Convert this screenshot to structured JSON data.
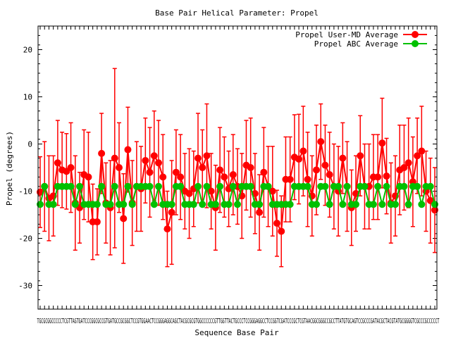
{
  "chart_data": {
    "type": "line",
    "title": "Base Pair Helical Parameter: Propel",
    "xlabel": "Sequence Base Pair",
    "ylabel": "Propel (degrees)",
    "ylim": [
      -35,
      25
    ],
    "yticks": [
      -30,
      -20,
      -10,
      0,
      10,
      20
    ],
    "grid": false,
    "legend_position": "top-right",
    "x_tick_labels": "TGCGCGGCCCCCTCGTTAGTGATCCCGGCGCCGTGATGCCGCGGCTCCGTGGAACTCCGGGAGGCAGCTACGCGCGTGGCCCCCCGTTGGTTACTGCCCTCCGGGAGGCCTCCGGTCGATCCCGCTCGTAACGGCGGGCCGCCTTATGTGCAGTCCGCCCGATACGCTACGTATGCGGGGTCGCCCGCCCCCT",
    "series": [
      {
        "name": "Propel User-MD Average",
        "color": "#ff0000",
        "values": [
          -10.2,
          -9.0,
          -11.5,
          -11.0,
          -4.0,
          -5.5,
          -5.8,
          -5.0,
          -12.5,
          -13.5,
          -6.5,
          -7.0,
          -16.5,
          -16.5,
          -2.0,
          -12.5,
          -13.5,
          -3.0,
          -5.0,
          -15.8,
          -1.2,
          -12.5,
          -9.0,
          -9.5,
          -3.5,
          -6.0,
          -2.5,
          -4.0,
          -7.0,
          -18.0,
          -14.5,
          -6.0,
          -7.0,
          -10.0,
          -10.5,
          -9.5,
          -3.0,
          -5.0,
          -2.5,
          -10.0,
          -13.5,
          -5.5,
          -7.0,
          -9.5,
          -6.5,
          -9.0,
          -11.0,
          -4.5,
          -5.0,
          -10.5,
          -14.5,
          -6.0,
          -9.0,
          -10.0,
          -16.8,
          -18.5,
          -7.5,
          -7.5,
          -2.8,
          -3.2,
          -1.5,
          -7.5,
          -11.0,
          -5.5,
          0.5,
          -4.5,
          -6.5,
          -9.0,
          -10.0,
          -3.0,
          -9.0,
          -13.5,
          -10.5,
          -2.5,
          -9.0,
          -9.0,
          -7.0,
          -7.0,
          0.2,
          -6.8,
          -12.5,
          -11.0,
          -5.5,
          -5.0,
          -4.0,
          -8.0,
          -2.5,
          -1.5,
          -10.0,
          -12.0,
          -14.0
        ],
        "error": [
          7.5,
          9.5,
          9.0,
          8.5,
          9.0,
          8.0,
          8.0,
          9.5,
          10.0,
          7.5,
          9.5,
          9.5,
          8.0,
          7.0,
          8.5,
          8.5,
          10.0,
          19.0,
          9.5,
          9.5,
          9.0,
          9.0,
          9.5,
          9.0,
          9.0,
          9.5,
          9.5,
          9.0,
          9.0,
          8.0,
          11.0,
          9.0,
          9.0,
          8.0,
          9.5,
          8.0,
          9.5,
          8.0,
          11.0,
          8.0,
          9.0,
          9.0,
          8.5,
          8.0,
          8.5,
          8.0,
          9.0,
          9.5,
          10.5,
          8.5,
          8.0,
          9.5,
          8.5,
          9.5,
          7.0,
          7.5,
          9.0,
          9.0,
          9.0,
          9.5,
          9.5,
          10.0,
          8.5,
          9.5,
          8.0,
          8.5,
          9.0,
          9.0,
          9.5,
          7.5,
          9.5,
          8.0,
          8.0,
          8.5,
          9.0,
          9.0,
          9.0,
          9.0,
          9.5,
          8.0,
          8.5,
          8.5,
          9.5,
          9.0,
          9.5,
          9.5,
          8.0,
          9.5,
          8.5,
          9.0,
          9.0
        ]
      },
      {
        "name": "Propel ABC Average",
        "color": "#00c000",
        "values": [
          -12.8,
          -9.0,
          -12.8,
          -12.8,
          -9.0,
          -9.0,
          -9.0,
          -9.0,
          -12.8,
          -9.0,
          -12.8,
          -12.8,
          -12.8,
          -12.8,
          -9.0,
          -12.8,
          -12.8,
          -9.0,
          -12.8,
          -12.8,
          -9.0,
          -12.8,
          -9.0,
          -9.0,
          -9.0,
          -9.0,
          -12.8,
          -9.0,
          -12.8,
          -12.8,
          -12.8,
          -9.0,
          -9.0,
          -12.8,
          -12.8,
          -12.8,
          -9.0,
          -12.8,
          -9.0,
          -12.8,
          -12.8,
          -9.0,
          -12.8,
          -12.8,
          -9.0,
          -12.8,
          -9.0,
          -9.0,
          -9.0,
          -12.8,
          -12.8,
          -9.0,
          -9.0,
          -12.8,
          -12.8,
          -12.8,
          -12.8,
          -12.8,
          -9.0,
          -9.0,
          -9.0,
          -9.0,
          -12.8,
          -12.8,
          -9.0,
          -9.0,
          -12.8,
          -9.0,
          -9.0,
          -12.8,
          -9.0,
          -12.8,
          -12.8,
          -9.0,
          -9.0,
          -12.8,
          -12.8,
          -9.0,
          -12.8,
          -9.0,
          -12.8,
          -12.8,
          -9.0,
          -9.0,
          -12.8,
          -9.0,
          -9.0,
          -12.8,
          -9.0,
          -9.0,
          -12.8
        ]
      }
    ]
  }
}
